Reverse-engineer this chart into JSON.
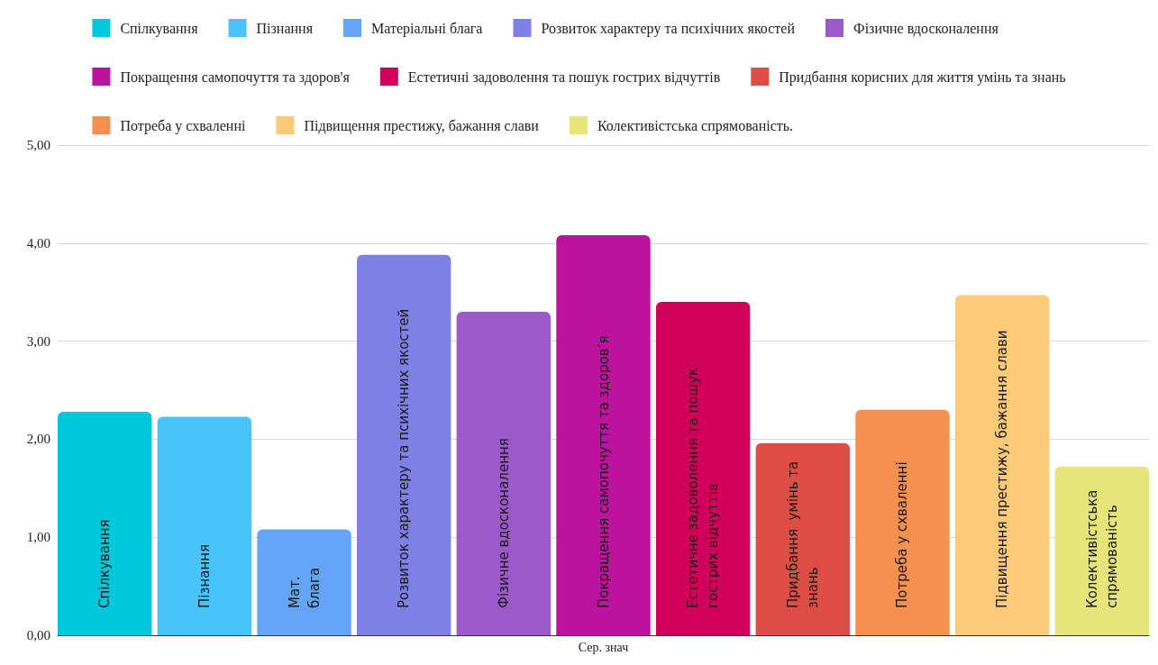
{
  "chart_data": {
    "type": "bar",
    "categories": [
      "Сер. знач"
    ],
    "series": [
      {
        "name": "Спілкування",
        "color": "#00c8dc",
        "values": [
          2.28
        ],
        "value_labels": [
          "Спілкування"
        ]
      },
      {
        "name": "Пізнання",
        "color": "#48c4fb",
        "values": [
          2.23
        ],
        "value_labels": [
          "Пізнання"
        ]
      },
      {
        "name": "Матеріальні блага",
        "color": "#64a5f8",
        "values": [
          1.08
        ],
        "value_labels": [
          "Мат.\nблага"
        ]
      },
      {
        "name": "Розвиток характеру та психічних якостей",
        "color": "#7f80e6",
        "values": [
          3.88
        ],
        "value_labels": [
          "Розвиток характеру та психічних якостей"
        ]
      },
      {
        "name": "Фізичне вдосконалення",
        "color": "#9b59ca",
        "values": [
          3.3
        ],
        "value_labels": [
          "Фізичне вдосконалення"
        ]
      },
      {
        "name": "Покращення самопочуття та здоров'я",
        "color": "#bc139c",
        "values": [
          4.08
        ],
        "value_labels": [
          "Покращення самопочуття та здоров’я"
        ]
      },
      {
        "name": "Естетичні задоволення та пошук гострих відчуттів",
        "color": "#d0005a",
        "values": [
          3.4
        ],
        "value_labels": [
          "Естетичне задоволення та пошук\nгострих відчуттів"
        ]
      },
      {
        "name": "Придбання корисних для життя умінь та знань",
        "color": "#de4e44",
        "values": [
          1.96
        ],
        "value_labels": [
          "Придбання  умінь та\nзнань"
        ]
      },
      {
        "name": "Потреба у схваленні",
        "color": "#f5904f",
        "values": [
          2.3
        ],
        "value_labels": [
          "Потреба у схваленні"
        ]
      },
      {
        "name": "Підвищення престижу, бажання слави",
        "color": "#fdca77",
        "values": [
          3.47
        ],
        "value_labels": [
          "Підвищення престижу, бажання слави"
        ]
      },
      {
        "name": "Колективістська спрямованість.",
        "color": "#e5e57a",
        "values": [
          1.72
        ],
        "value_labels": [
          "Колективістська\nспрямованість"
        ]
      }
    ],
    "ylim": [
      0,
      5
    ],
    "yticks": [
      {
        "value": 0,
        "label": "0,00"
      },
      {
        "value": 1,
        "label": "1,00"
      },
      {
        "value": 2,
        "label": "2,00"
      },
      {
        "value": 3,
        "label": "3,00"
      },
      {
        "value": 4,
        "label": "4,00"
      },
      {
        "value": 5,
        "label": "5,00"
      }
    ],
    "grid": "y",
    "legend": "top"
  }
}
